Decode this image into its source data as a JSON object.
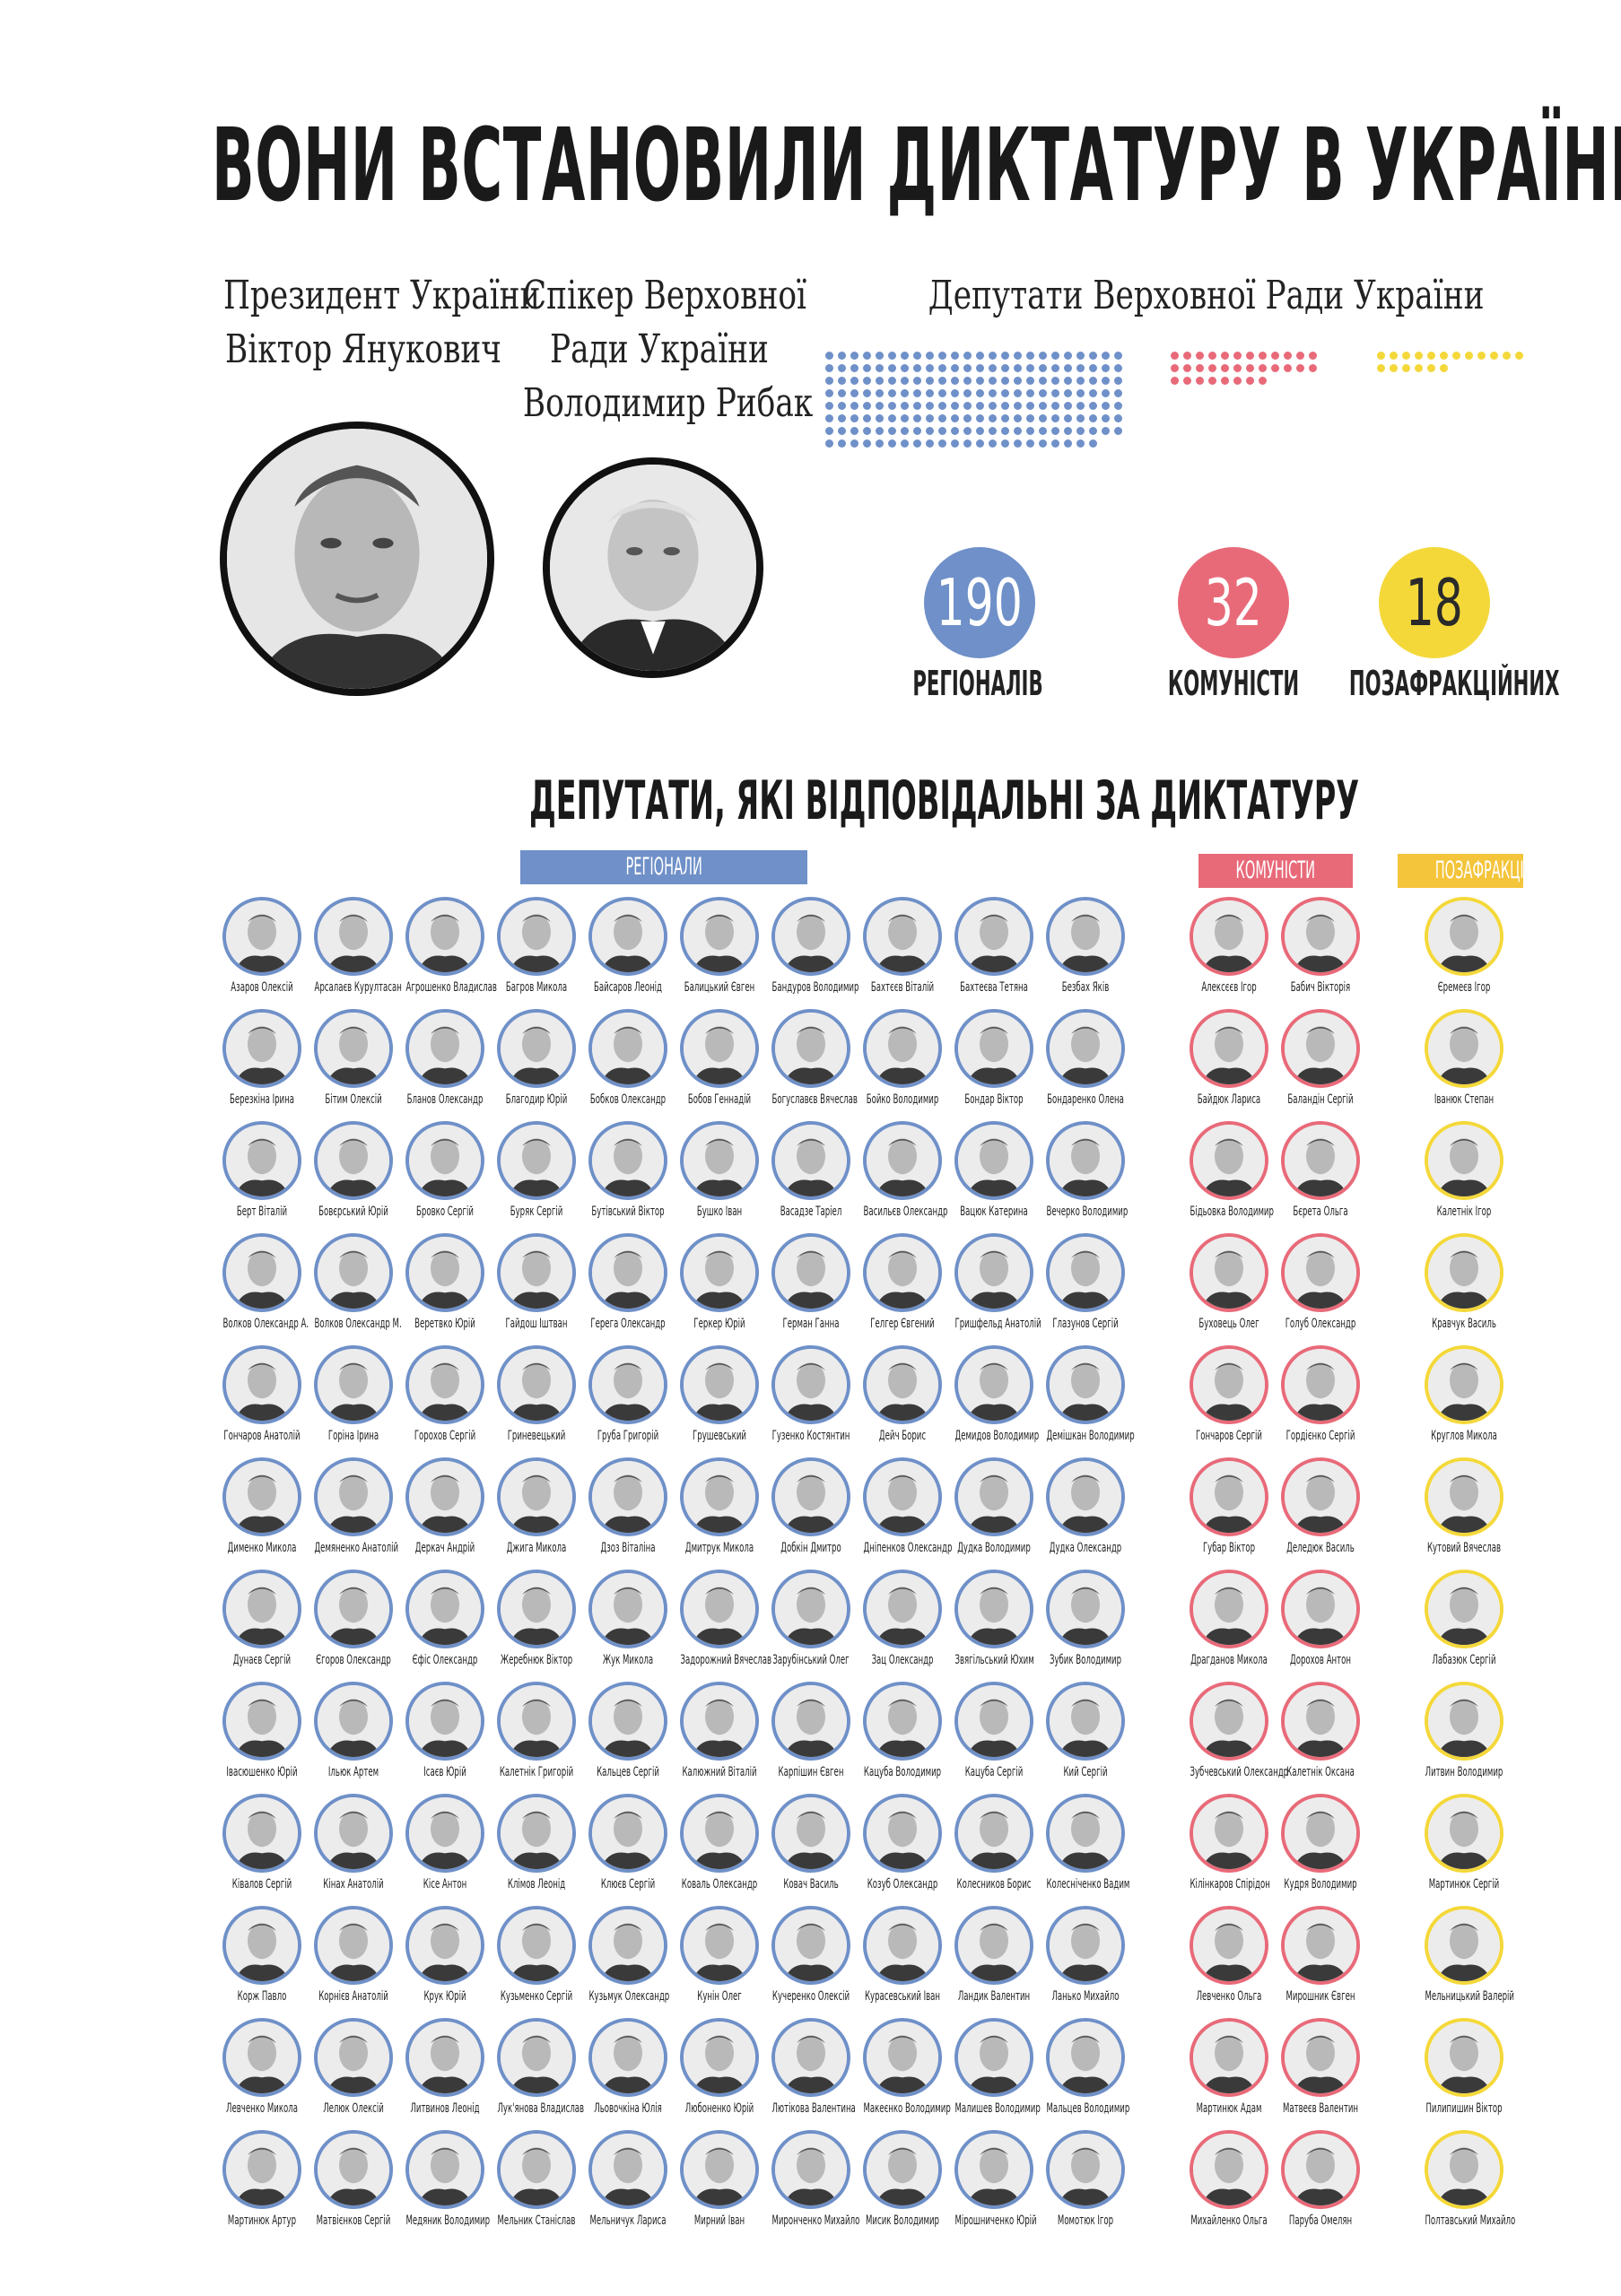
{
  "title": "ВОНИ ВСТАНОВИЛИ ДИКТАТУРУ В УКРАЇНІ",
  "president": {
    "line1": "Президент України",
    "line2": "Віктор Янукович"
  },
  "speaker": {
    "line1": "Спікер Верховної",
    "line2": "Ради України",
    "line3": "Володимир Рибак"
  },
  "deputies_header": "Депутати Верховної Ради України",
  "colors": {
    "regions": "#6f90c8",
    "communists": "#e86a79",
    "nonfaction": "#f4d83a"
  },
  "counts": [
    {
      "value": "190",
      "label": "РЕГІОНАЛІВ"
    },
    {
      "value": "32",
      "label": "КОМУНІСТИ"
    },
    {
      "value": "18",
      "label": "ПОЗАФРАКЦІЙНИХ"
    }
  ],
  "responsible_title": "ДЕПУТАТИ, ЯКІ ВІДПОВІДАЛЬНІ ЗА ДИКТАТУРУ",
  "ribbons": {
    "regions": "РЕГІОНАЛИ",
    "communists": "КОМУНІСТИ",
    "nonfaction": "ПОЗАФРАКЦІЙНІ"
  },
  "regions": [
    [
      "Азаров Олексій",
      "Арсалаєв Курултасан",
      "Агрошенко Владислав",
      "Багров Микола",
      "Байсаров Леонід",
      "Балицький Євген",
      "Бандуров Володимир",
      "Бахтєєв Віталій",
      "Бахтеєва Тетяна",
      "Безбах Яків"
    ],
    [
      "Березкіна Ірина",
      "Бітим Олексій",
      "Бланов Олександр",
      "Благодир Юрій",
      "Бобков Олександр",
      "Бобов Геннадій",
      "Богуславєв Вячеслав",
      "Бойко Володимир",
      "Бондар Віктор",
      "Бондаренко Олена"
    ],
    [
      "Берт Віталій",
      "Бовєрський Юрій",
      "Бровко Сергій",
      "Буряк Сергій",
      "Бутівський Віктор",
      "Бушко Іван",
      "Васадзе Таріел",
      "Васильєв Олександр",
      "Вацюк Катерина",
      "Вечерко Володимир"
    ],
    [
      "Волков Олександр А.",
      "Волков Олександр М.",
      "Веретвко Юрій",
      "Гайдош Іштван",
      "Герега Олександр",
      "Геркер Юрій",
      "Герман Ганна",
      "Гелгер Євгений",
      "Гришфельд Анатолій",
      "Глазунов Сергій"
    ],
    [
      "Гончаров Анатолій",
      "Горіна Ірина",
      "Горохов Сергій",
      "Гриневецький",
      "Груба Григорій",
      "Грушевський",
      "Гузенко Костянтин",
      "Дейч Борис",
      "Демидов Володимир",
      "Демішкан Володимир"
    ],
    [
      "Дименко Микола",
      "Демяненко Анатолій",
      "Деркач Андрій",
      "Джига Микола",
      "Дзоз Віталіна",
      "Дмитрук Микола",
      "Добкін Дмитро",
      "Дніпенков Олександр",
      "Дудка Володимир",
      "Дудка Олександр"
    ],
    [
      "Дунаєв Сергій",
      "Єгоров Олександр",
      "Єфіс Олександр",
      "Жеребнюк Віктор",
      "Жук Микола",
      "Задорожний Вячеслав",
      "Зарубінський Олег",
      "Зац Олександр",
      "Звягільський Юхим",
      "Зубик Володимир"
    ],
    [
      "Івасюшенко Юрій",
      "Ільюк Артем",
      "Ісаєв Юрій",
      "Калетнік Григорій",
      "Кальцев Сергій",
      "Калюжний Віталій",
      "Карпішин Євген",
      "Кацуба Володимир",
      "Кацуба Сергій",
      "Кий Сергій"
    ],
    [
      "Ківалов Сергій",
      "Кінах Анатолій",
      "Кісе Антон",
      "Клімов Леонід",
      "Клюєв Сергій",
      "Коваль Олександр",
      "Ковач Василь",
      "Козуб Олександр",
      "Колесников Борис",
      "Колесніченко Вадим"
    ],
    [
      "Корж Павло",
      "Корнієв Анатолій",
      "Крук Юрій",
      "Кузьменко Сергій",
      "Кузьмук Олександр",
      "Кунін Олег",
      "Кучеренко Олексій",
      "Курасевський Іван",
      "Ландик Валентин",
      "Ланько Михайло"
    ],
    [
      "Левченко Микола",
      "Лелюк Олексій",
      "Литвинов Леонід",
      "Лук'янова Владислав",
      "Льовочкіна Юлія",
      "Любоненко Юрій",
      "Лютікова Валентина",
      "Макеєнко Володимир",
      "Малишев Володимир",
      "Мальцев Володимир"
    ],
    [
      "Мартинюк Артур",
      "Матвієнков Сергій",
      "Медяник Володимир",
      "Мельник Станіслав",
      "Мельничук Лариса",
      "Мирний Іван",
      "Миронченко Михайло",
      "Мисик Володимир",
      "Мірошниченко Юрій",
      "Момотюк Ігор"
    ]
  ],
  "communists": [
    [
      "Алексєєв Ігор",
      "Бабич Вікторія"
    ],
    [
      "Байдюк Лариса",
      "Баландін Сергій"
    ],
    [
      "Бідьовка Володимир",
      "Бєрета Ольга"
    ],
    [
      "Буховець Олег",
      "Голуб Олександр"
    ],
    [
      "Гончаров Сергій",
      "Гордієнко Сергій"
    ],
    [
      "Губар Віктор",
      "Деледюк Василь"
    ],
    [
      "Драгданов Микола",
      "Дорохов Антон"
    ],
    [
      "Зубчевський Олександр",
      "Калетнік Оксана"
    ],
    [
      "Кілінкаров Спірідон",
      "Кудря Володимир"
    ],
    [
      "Левченко Ольга",
      "Мирошник Євген"
    ],
    [
      "Мартинюк Адам",
      "Матвеєв Валентин"
    ],
    [
      "Михайленко Ольга",
      "Паруба Омелян"
    ]
  ],
  "nonfaction": [
    "Єремеєв Ігор",
    "Іванюк Степан",
    "Калетнік Ігор",
    "Кравчук Василь",
    "Круглов Микола",
    "Кутовий Вячеслав",
    "Лабазюк Сергій",
    "Литвин Володимир",
    "Мартинюк Сергій",
    "Мельницький Валерій",
    "Пилипишин Віктор",
    "Полтавський Михайло"
  ]
}
